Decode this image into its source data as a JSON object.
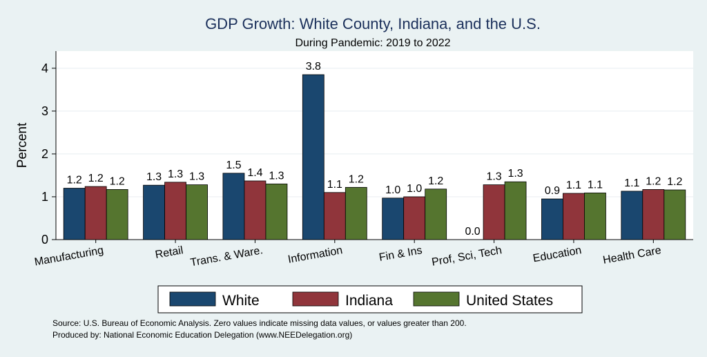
{
  "page": {
    "background": "#eaf2f3",
    "plot_background": "#ffffff",
    "title_color": "#1a2f5a",
    "source_line": "Source: U.S. Bureau of Economic Analysis. Zero values indicate missing data values, or values greater than 200.",
    "produced_line": "Produced by: National Economic Education Delegation (www.NEEDelegation.org)"
  },
  "chart_data": {
    "type": "bar",
    "title": "GDP Growth: White County, Indiana, and the U.S.",
    "subtitle": "During Pandemic: 2019 to 2022",
    "xlabel": "",
    "ylabel": "Percent",
    "ylim": [
      0,
      4.4
    ],
    "yticks": [
      0,
      1,
      2,
      3,
      4
    ],
    "grid": true,
    "legend_position": "bottom",
    "categories": [
      "Manufacturing",
      "Retail",
      "Trans. & Ware.",
      "Information",
      "Fin & Ins",
      "Prof, Sci, Tech",
      "Education",
      "Health Care"
    ],
    "series": [
      {
        "name": "White",
        "color": "#1a476f",
        "values": [
          1.2,
          1.27,
          1.55,
          3.85,
          0.97,
          0.0,
          0.95,
          1.13
        ],
        "labels": [
          "1.2",
          "1.3",
          "1.5",
          "3.8",
          "1.0",
          "0.0",
          "0.9",
          "1.1"
        ]
      },
      {
        "name": "Indiana",
        "color": "#90353b",
        "values": [
          1.24,
          1.34,
          1.37,
          1.1,
          1.0,
          1.28,
          1.08,
          1.17
        ],
        "labels": [
          "1.2",
          "1.3",
          "1.4",
          "1.1",
          "1.0",
          "1.3",
          "1.1",
          "1.2"
        ]
      },
      {
        "name": "United States",
        "color": "#55752f",
        "values": [
          1.17,
          1.28,
          1.3,
          1.22,
          1.18,
          1.35,
          1.09,
          1.16
        ],
        "labels": [
          "1.2",
          "1.3",
          "1.3",
          "1.2",
          "1.2",
          "1.3",
          "1.1",
          "1.2"
        ]
      }
    ]
  }
}
